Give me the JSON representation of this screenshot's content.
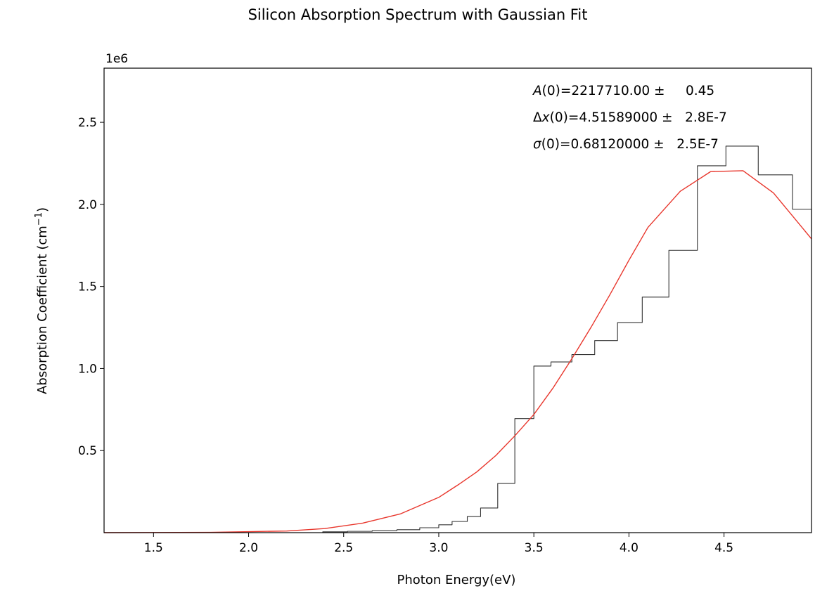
{
  "chart_data": {
    "type": "line",
    "title": "Silicon Absorption Spectrum with Gaussian Fit",
    "xlabel": "Photon Energy(eV)",
    "ylabel_main": "Absorption Coefficient (cm",
    "ylabel_sup": "−1",
    "ylabel_close": ")",
    "y_offset_label": "1e6",
    "xlim": [
      1.24,
      4.96
    ],
    "ylim": [
      0,
      2.83
    ],
    "y_scale": 1000000,
    "x_ticks": [
      1.5,
      2.0,
      2.5,
      3.0,
      3.5,
      4.0,
      4.5
    ],
    "x_tick_labels": [
      "1.5",
      "2.0",
      "2.5",
      "3.0",
      "3.5",
      "4.0",
      "4.5"
    ],
    "y_ticks": [
      0.5,
      1.0,
      1.5,
      2.0,
      2.5
    ],
    "y_tick_labels": [
      "0.5",
      "1.0",
      "1.5",
      "2.0",
      "2.5"
    ],
    "grid": false,
    "series": [
      {
        "style": "step",
        "color": "#333333",
        "x": [
          1.24,
          2.39,
          2.52,
          2.65,
          2.78,
          2.9,
          3.0,
          3.07,
          3.15,
          3.22,
          3.31,
          3.4,
          3.5,
          3.59,
          3.7,
          3.82,
          3.94,
          4.07,
          4.21,
          4.36,
          4.51,
          4.68,
          4.86,
          4.96
        ],
        "values": [
          0.0,
          0.005,
          0.008,
          0.012,
          0.018,
          0.03,
          0.048,
          0.068,
          0.098,
          0.15,
          0.3,
          0.695,
          1.015,
          1.04,
          1.085,
          1.17,
          1.28,
          1.435,
          1.72,
          2.235,
          2.355,
          2.18,
          1.97,
          1.835
        ]
      },
      {
        "style": "line",
        "color": "#e8362c",
        "x": [
          1.24,
          1.8,
          2.2,
          2.4,
          2.6,
          2.8,
          3.0,
          3.1,
          3.2,
          3.3,
          3.4,
          3.5,
          3.6,
          3.7,
          3.8,
          3.9,
          4.0,
          4.1,
          4.27,
          4.43,
          4.6,
          4.76,
          4.96
        ],
        "values": [
          0.0,
          0.002,
          0.01,
          0.025,
          0.058,
          0.115,
          0.215,
          0.29,
          0.37,
          0.47,
          0.59,
          0.72,
          0.88,
          1.06,
          1.25,
          1.45,
          1.66,
          1.86,
          2.08,
          2.2,
          2.205,
          2.07,
          1.79
        ]
      }
    ],
    "annotations": [
      {
        "pre": "",
        "symbol": "A",
        "post": "(0)=2217710.00 ±     0.45"
      },
      {
        "pre": "Δ",
        "symbol": "x",
        "post": "(0)=4.51589000 ±   2.8E-7"
      },
      {
        "pre": "",
        "symbol": "σ",
        "post": "(0)=0.68120000 ±   2.5E-7"
      }
    ]
  }
}
